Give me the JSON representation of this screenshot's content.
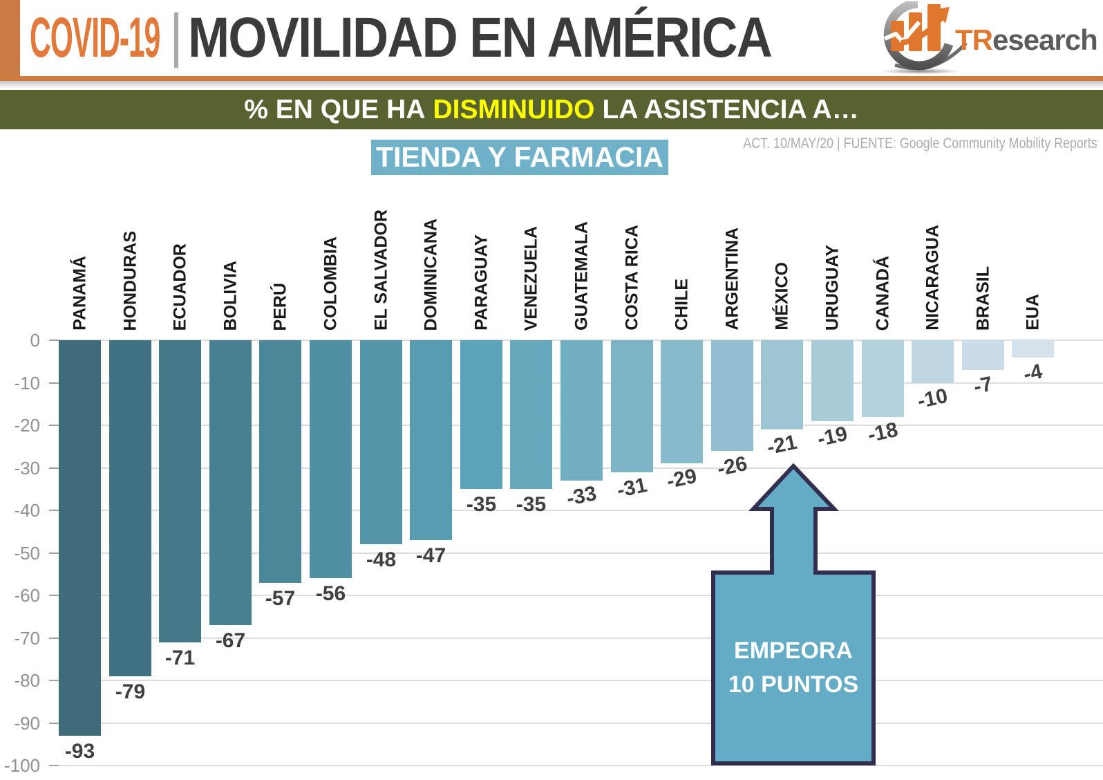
{
  "header": {
    "brand": "COVID-19",
    "section_title": "MOVILIDAD EN AMÉRICA",
    "logo": {
      "prefix": "TR",
      "suffix": "esearch"
    }
  },
  "banner": {
    "prefix": "% EN QUE HA",
    "highlight": "DISMINUIDO",
    "suffix": "LA ASISTENCIA A…"
  },
  "meta_line": "ACT. 10/MAY/20 | FUENTE: Google Community Mobility Reports",
  "callout": {
    "line1": "EMPEORA",
    "line2": "10 PUNTOS"
  },
  "colors": {
    "accent_orange": "#e0793a",
    "header_block_orange": "#ca7a42",
    "header_rule_orange": "#d0793d",
    "header_text": "#3b3b3b",
    "banner_bg": "#586231",
    "banner_highlight": "#fdff00",
    "chart_title_bg": "#6fb1c9",
    "callout_fill": "#64abc6",
    "callout_border": "#312e4f",
    "grid": "#dcdcdc",
    "axis_text": "#909090",
    "value_text": "#3f3f3f",
    "country_text": "#1a1a1a",
    "meta_text": "#acacac"
  },
  "chart_data": {
    "type": "bar",
    "title": "TIENDA Y FARMACIA",
    "categories": [
      "PANAMÁ",
      "HONDURAS",
      "ECUADOR",
      "BOLIVIA",
      "PERÚ",
      "COLOMBIA",
      "EL SALVADOR",
      "DOMINICANA",
      "PARAGUAY",
      "VENEZUELA",
      "GUATEMALA",
      "COSTA RICA",
      "CHILE",
      "ARGENTINA",
      "MÉXICO",
      "URUGUAY",
      "CANADÁ",
      "NICARAGUA",
      "BRASIL",
      "EUA"
    ],
    "values": [
      -93,
      -79,
      -71,
      -67,
      -57,
      -56,
      -48,
      -47,
      -35,
      -35,
      -33,
      -31,
      -29,
      -26,
      -21,
      -19,
      -18,
      -10,
      -7,
      -4
    ],
    "bar_colors": [
      "#3d6b7a",
      "#417282",
      "#45798a",
      "#488091",
      "#4c8799",
      "#508ea1",
      "#5495a9",
      "#579cb0",
      "#5ba3b8",
      "#66a9bd",
      "#71aec1",
      "#7cb4c6",
      "#87bacb",
      "#92bfd0",
      "#9ec5d4",
      "#a9cbd9",
      "#b4d1de",
      "#bfd6e3",
      "#cadce7",
      "#d5e2ec"
    ],
    "xlabel": "",
    "ylabel": "",
    "ylim": [
      -100,
      0
    ],
    "yticks": [
      0,
      -10,
      -20,
      -30,
      -40,
      -50,
      -60,
      -70,
      -80,
      -90,
      -100
    ],
    "grid": true,
    "legend": "none",
    "annotation": "EMPEORA 10 PUNTOS (flecha sobre MÉXICO)"
  }
}
